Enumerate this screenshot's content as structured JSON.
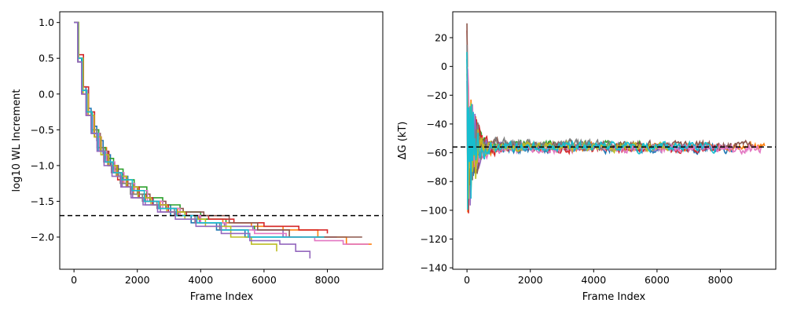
{
  "figure": {
    "background": "#ffffff"
  },
  "palette": [
    "#1f77b4",
    "#ff7f0e",
    "#2ca02c",
    "#d62728",
    "#9467bd",
    "#8c564b",
    "#e377c2",
    "#7f7f7f",
    "#bcbd22",
    "#17becf"
  ],
  "chart_data": [
    {
      "type": "line",
      "title": "",
      "xlabel": "Frame Index",
      "ylabel": "log10 WL Increment",
      "xlim": [
        -450,
        9750
      ],
      "ylim": [
        -2.45,
        1.15
      ],
      "xticks": [
        0,
        2000,
        4000,
        6000,
        8000
      ],
      "yticks": [
        1.0,
        0.5,
        0.0,
        -0.5,
        -1.0,
        -1.5,
        -2.0
      ],
      "ytick_labels": [
        "1.0",
        "0.5",
        "0.0",
        "−0.5",
        "−1.0",
        "−1.5",
        "−2.0"
      ],
      "reference_line": {
        "y": -1.7,
        "style": "dashed",
        "color": "#000000"
      },
      "series": [
        {
          "color": "#1f77b4",
          "x": [
            0,
            120,
            240,
            380,
            540,
            720,
            920,
            1150,
            1400,
            1700,
            2050,
            2500,
            3050,
            3700,
            4500,
            5400,
            6300,
            7200
          ],
          "y": [
            1.0,
            0.5,
            0.1,
            -0.2,
            -0.45,
            -0.65,
            -0.85,
            -1.0,
            -1.15,
            -1.3,
            -1.45,
            -1.55,
            -1.7,
            -1.8,
            -1.9,
            -2.0,
            -2.0,
            -2.0
          ]
        },
        {
          "color": "#ff7f0e",
          "x": [
            0,
            140,
            270,
            420,
            600,
            800,
            1030,
            1280,
            1560,
            1880,
            2260,
            2720,
            3270,
            3920,
            4700,
            5600,
            6600,
            7700,
            8600,
            9400
          ],
          "y": [
            1.0,
            0.5,
            0.0,
            -0.3,
            -0.55,
            -0.75,
            -0.95,
            -1.1,
            -1.25,
            -1.4,
            -1.5,
            -1.6,
            -1.7,
            -1.75,
            -1.8,
            -1.85,
            -1.9,
            -2.0,
            -2.1,
            -2.1
          ]
        },
        {
          "color": "#2ca02c",
          "x": [
            0,
            130,
            260,
            410,
            580,
            780,
            1000,
            1250,
            1550,
            1900,
            2300,
            2800,
            3350,
            4000,
            4800,
            5700
          ],
          "y": [
            1.0,
            0.45,
            0.05,
            -0.25,
            -0.5,
            -0.75,
            -0.9,
            -1.05,
            -1.2,
            -1.3,
            -1.45,
            -1.55,
            -1.65,
            -1.75,
            -1.85,
            -1.9
          ]
        },
        {
          "color": "#d62728",
          "x": [
            0,
            150,
            300,
            460,
            650,
            860,
            1100,
            1380,
            1700,
            2060,
            2480,
            2980,
            3550,
            4250,
            5050,
            6000,
            7100,
            8000
          ],
          "y": [
            1.0,
            0.55,
            0.1,
            -0.25,
            -0.6,
            -0.8,
            -1.0,
            -1.2,
            -1.3,
            -1.45,
            -1.55,
            -1.65,
            -1.7,
            -1.75,
            -1.8,
            -1.85,
            -1.9,
            -1.95
          ]
        },
        {
          "color": "#9467bd",
          "x": [
            0,
            120,
            250,
            400,
            570,
            770,
            990,
            1240,
            1520,
            1850,
            2250,
            2730,
            3300,
            3960,
            4750,
            5650,
            6600,
            7500,
            8300
          ],
          "y": [
            1.0,
            0.45,
            0.0,
            -0.3,
            -0.55,
            -0.8,
            -0.95,
            -1.1,
            -1.3,
            -1.45,
            -1.55,
            -1.65,
            -1.7,
            -1.8,
            -1.85,
            -1.9,
            -2.0,
            -2.0,
            -2.0
          ]
        },
        {
          "color": "#8c564b",
          "x": [
            0,
            140,
            280,
            440,
            620,
            830,
            1070,
            1340,
            1650,
            2000,
            2400,
            2900,
            3450,
            4100,
            4900,
            5800,
            6800,
            7700,
            8500,
            9100
          ],
          "y": [
            1.0,
            0.5,
            0.05,
            -0.3,
            -0.55,
            -0.8,
            -1.0,
            -1.15,
            -1.3,
            -1.4,
            -1.5,
            -1.6,
            -1.65,
            -1.7,
            -1.8,
            -1.9,
            -2.0,
            -2.0,
            -2.0,
            -2.0
          ]
        },
        {
          "color": "#e377c2",
          "x": [
            0,
            130,
            270,
            420,
            600,
            800,
            1030,
            1290,
            1580,
            1920,
            2320,
            2800,
            3350,
            4000,
            4800,
            5700,
            6700,
            7600,
            8500,
            9300
          ],
          "y": [
            1.0,
            0.5,
            0.05,
            -0.3,
            -0.55,
            -0.8,
            -0.95,
            -1.1,
            -1.25,
            -1.35,
            -1.5,
            -1.6,
            -1.7,
            -1.8,
            -1.9,
            -1.95,
            -2.0,
            -2.05,
            -2.1,
            -2.1
          ]
        },
        {
          "color": "#7f7f7f",
          "x": [
            0,
            120,
            240,
            380,
            540,
            730,
            940,
            1180,
            1460,
            1780,
            2160,
            2620,
            3170,
            3820,
            4600
          ],
          "y": [
            1.0,
            0.45,
            0.05,
            -0.25,
            -0.5,
            -0.75,
            -0.95,
            -1.1,
            -1.25,
            -1.4,
            -1.5,
            -1.6,
            -1.7,
            -1.8,
            -1.9
          ]
        },
        {
          "color": "#bcbd22",
          "x": [
            0,
            150,
            290,
            450,
            640,
            850,
            1090,
            1360,
            1670,
            2020,
            2430,
            2930,
            3500,
            4150,
            4950,
            5600,
            6400
          ],
          "y": [
            1.0,
            0.5,
            0.0,
            -0.3,
            -0.6,
            -0.85,
            -1.0,
            -1.15,
            -1.3,
            -1.45,
            -1.55,
            -1.65,
            -1.75,
            -1.85,
            -2.0,
            -2.1,
            -2.2
          ]
        },
        {
          "color": "#17becf",
          "x": [
            0,
            130,
            260,
            400,
            570,
            760,
            980,
            1230,
            1510,
            1840,
            2220,
            2680,
            3230,
            3880,
            4650,
            5500,
            6400,
            7300,
            7900
          ],
          "y": [
            1.0,
            0.5,
            0.05,
            -0.25,
            -0.55,
            -0.8,
            -0.95,
            -1.1,
            -1.2,
            -1.35,
            -1.5,
            -1.6,
            -1.7,
            -1.8,
            -1.9,
            -2.0,
            -2.0,
            -2.0,
            -2.0
          ]
        },
        {
          "color": "#9467bd",
          "x": [
            0,
            120,
            240,
            380,
            540,
            730,
            950,
            1200,
            1480,
            1800,
            2180,
            2640,
            3200,
            3850,
            4650,
            5550,
            6500,
            7000,
            7450
          ],
          "y": [
            1.0,
            0.45,
            0.0,
            -0.3,
            -0.55,
            -0.8,
            -1.0,
            -1.15,
            -1.3,
            -1.45,
            -1.55,
            -1.65,
            -1.75,
            -1.85,
            -1.95,
            -2.05,
            -2.1,
            -2.2,
            -2.3
          ]
        }
      ]
    },
    {
      "type": "line",
      "title": "",
      "xlabel": "Frame Index",
      "ylabel": "ΔG (kT)",
      "xlim": [
        -450,
        9750
      ],
      "ylim": [
        -141,
        38
      ],
      "xticks": [
        0,
        2000,
        4000,
        6000,
        8000
      ],
      "yticks": [
        20,
        0,
        -20,
        -40,
        -60,
        -80,
        -100,
        -120,
        -140
      ],
      "ytick_labels": [
        "20",
        "0",
        "−20",
        "−40",
        "−60",
        "−80",
        "−100",
        "−120",
        "−140"
      ],
      "reference_line": {
        "y": -56,
        "style": "dashed",
        "color": "#000000"
      },
      "series": [
        {
          "color": "#1f77b4",
          "end": 8400,
          "start_val": 5,
          "mean": -57,
          "amp": 8
        },
        {
          "color": "#ff7f0e",
          "end": 9400,
          "start_val": 0,
          "mean": -56,
          "amp": 7
        },
        {
          "color": "#2ca02c",
          "end": 5700,
          "start_val": 10,
          "mean": -55,
          "amp": 8
        },
        {
          "color": "#d62728",
          "end": 8000,
          "start_val": 25,
          "mean": -57,
          "amp": 8
        },
        {
          "color": "#9467bd",
          "end": 8300,
          "start_val": -10,
          "mean": -56,
          "amp": 7
        },
        {
          "color": "#8c564b",
          "end": 9100,
          "start_val": 30,
          "mean": -55,
          "amp": 8
        },
        {
          "color": "#e377c2",
          "end": 9300,
          "start_val": 0,
          "mean": -57,
          "amp": 8
        },
        {
          "color": "#7f7f7f",
          "end": 4600,
          "start_val": 15,
          "mean": -54,
          "amp": 8
        },
        {
          "color": "#bcbd22",
          "end": 6400,
          "start_val": -5,
          "mean": -56,
          "amp": 8
        },
        {
          "color": "#17becf",
          "end": 7900,
          "start_val": 10,
          "mean": -56,
          "amp": 9
        }
      ]
    }
  ]
}
